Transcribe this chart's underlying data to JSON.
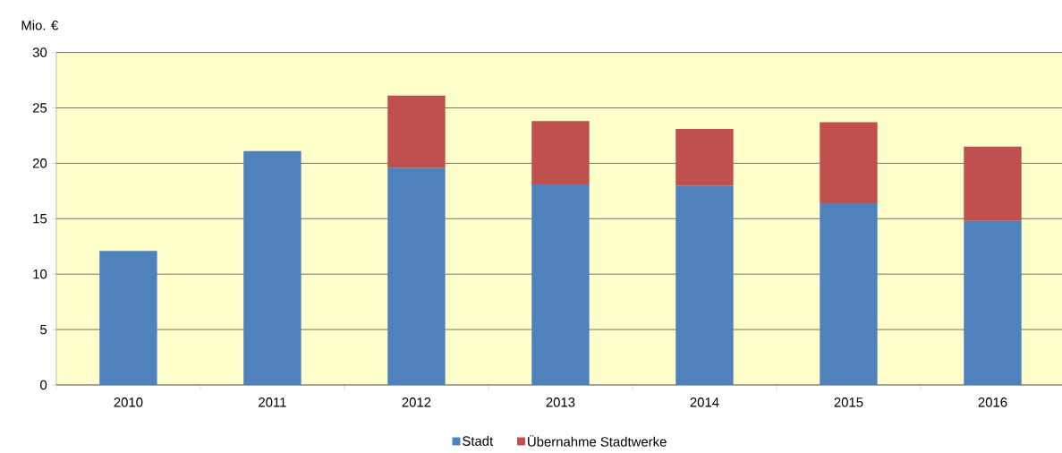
{
  "chart_data": {
    "type": "bar",
    "stacked": true,
    "ylabel": "Mio. €",
    "categories": [
      "2010",
      "2011",
      "2012",
      "2013",
      "2014",
      "2015",
      "2016"
    ],
    "series": [
      {
        "name": "Stadt",
        "color": "#4f81bd",
        "values": [
          12.1,
          21.1,
          19.6,
          18.1,
          18.0,
          16.4,
          14.8
        ]
      },
      {
        "name": "Übernahme Stadtwerke",
        "color": "#c0504d",
        "values": [
          null,
          null,
          6.5,
          5.7,
          5.1,
          7.3,
          6.7
        ]
      }
    ],
    "ylim": [
      0,
      30
    ],
    "yticks": [
      0,
      5,
      10,
      15,
      20,
      25,
      30
    ],
    "grid": "y",
    "legend": "bottom"
  }
}
